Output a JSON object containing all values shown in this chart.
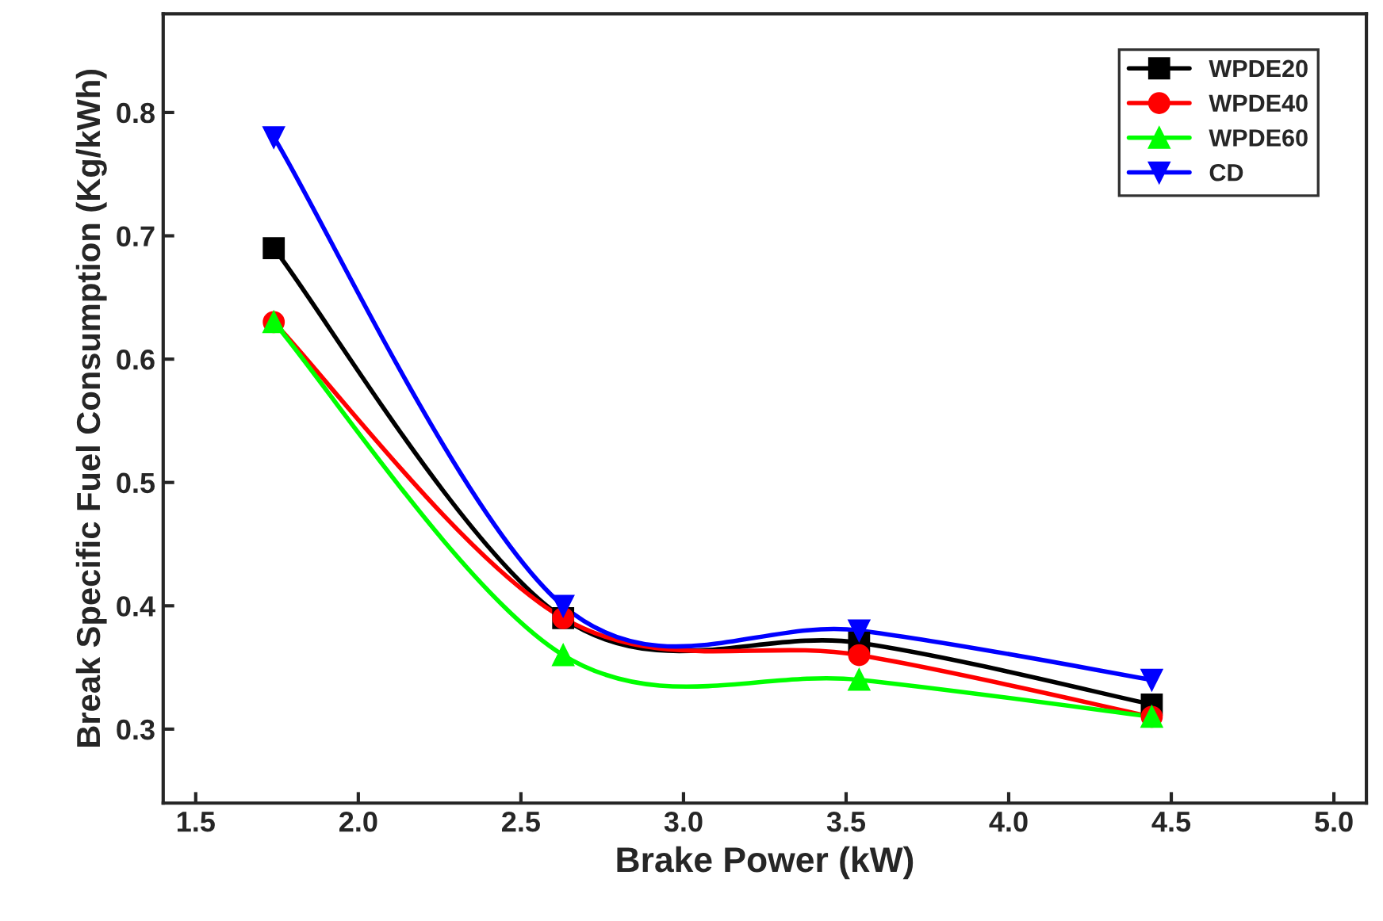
{
  "chart_data": {
    "type": "line",
    "xlabel": "Brake Power (kW)",
    "ylabel": "Break Specific Fuel Consumption (Kg/kWh)",
    "x": [
      1.74,
      2.63,
      3.54,
      4.44
    ],
    "series": [
      {
        "name": "WPDE20",
        "color": "#000000",
        "marker": "square",
        "values": [
          0.69,
          0.39,
          0.37,
          0.32
        ]
      },
      {
        "name": "WPDE40",
        "color": "#ff0000",
        "marker": "circle",
        "values": [
          0.63,
          0.39,
          0.36,
          0.31
        ]
      },
      {
        "name": "WPDE60",
        "color": "#00ff00",
        "marker": "triangle",
        "values": [
          0.63,
          0.36,
          0.34,
          0.31
        ]
      },
      {
        "name": "CD",
        "color": "#0000ff",
        "marker": "triangle_down",
        "values": [
          0.78,
          0.4,
          0.38,
          0.34
        ]
      }
    ],
    "xlim": [
      1.4,
      5.1
    ],
    "ylim": [
      0.24,
      0.88
    ],
    "xticks": [
      1.5,
      {
        "value": 2,
        "label": "2.0"
      },
      2.5,
      {
        "value": 3,
        "label": "3.0"
      },
      3.5,
      {
        "value": 4,
        "label": "4.0"
      },
      4.5,
      {
        "value": 5,
        "label": "5.0"
      }
    ],
    "yticks": [
      0.3,
      0.4,
      0.5,
      0.6,
      0.7,
      0.8
    ],
    "legend": "top right",
    "grid": false,
    "line_style": "solid"
  }
}
